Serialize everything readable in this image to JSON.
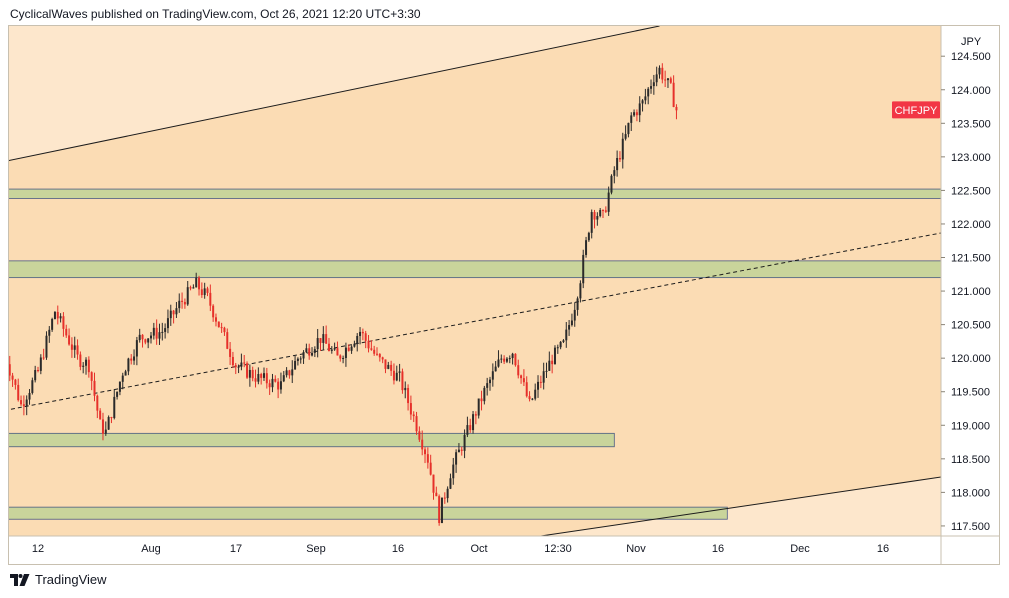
{
  "header": {
    "author": "CyclicalWaves",
    "text": "published on TradingView.com, Oct 26, 2021 12:20 UTC+3:30"
  },
  "footer": {
    "brand": "TradingView"
  },
  "symbol": {
    "label": "CHFJPY",
    "color": "#f23645"
  },
  "colors": {
    "background": "#fbdcb4",
    "channel_outside": "#fde7cc",
    "zone_fill": "#c9d49b",
    "zone_border": "#4a5a82",
    "up_candle": "#2a2a2a",
    "down_candle": "#e6302a"
  },
  "chart_data": {
    "type": "candlestick",
    "symbol": "CHFJPY",
    "currency": "JPY",
    "x_labels": [
      "12",
      "Aug",
      "17",
      "Sep",
      "16",
      "Oct",
      "12:30",
      "Nov",
      "16",
      "Dec",
      "16"
    ],
    "y_ticks": [
      "124.500",
      "124.000",
      "123.500",
      "123.000",
      "122.500",
      "122.000",
      "121.500",
      "121.000",
      "120.500",
      "120.000",
      "119.500",
      "119.000",
      "118.500",
      "118.000",
      "117.500"
    ],
    "ylim": [
      117.35,
      124.95
    ],
    "last_price": 123.7,
    "zones": [
      {
        "name": "zone-122.5",
        "low": 122.38,
        "high": 122.52,
        "from": "2021-07-06",
        "to": "2021-12-31"
      },
      {
        "name": "zone-121.3",
        "low": 121.2,
        "high": 121.45,
        "from": "2021-07-06",
        "to": "2021-12-31"
      },
      {
        "name": "zone-118.8",
        "low": 118.68,
        "high": 118.88,
        "from": "2021-07-06",
        "to": "2021-10-22"
      },
      {
        "name": "zone-117.8",
        "low": 117.6,
        "high": 117.78,
        "from": "2021-07-06",
        "to": "2021-11-11"
      }
    ],
    "trendlines": [
      {
        "name": "channel-upper",
        "style": "solid",
        "from": {
          "date": "2021-07-06",
          "price": 122.93
        },
        "to": {
          "date": "2021-10-30",
          "price": 124.95
        }
      },
      {
        "name": "channel-lower",
        "style": "solid",
        "from": {
          "date": "2021-10-09",
          "price": 117.35
        },
        "to": {
          "date": "2021-12-31",
          "price": 118.38
        }
      },
      {
        "name": "midline",
        "style": "dashed",
        "from": {
          "date": "2021-07-06",
          "price": 119.22
        },
        "to": {
          "date": "2021-12-31",
          "price": 122.06
        }
      }
    ],
    "path": [
      [
        "2021-07-06",
        120.1
      ],
      [
        "2021-07-09",
        119.3
      ],
      [
        "2021-07-12",
        119.8
      ],
      [
        "2021-07-15",
        120.7
      ],
      [
        "2021-07-19",
        120.0
      ],
      [
        "2021-07-21",
        119.9
      ],
      [
        "2021-07-23",
        119.0
      ],
      [
        "2021-07-24",
        118.9
      ],
      [
        "2021-07-27",
        119.8
      ],
      [
        "2021-07-30",
        120.3
      ],
      [
        "2021-08-03",
        120.4
      ],
      [
        "2021-08-06",
        120.8
      ],
      [
        "2021-08-09",
        121.1
      ],
      [
        "2021-08-11",
        120.9
      ],
      [
        "2021-08-13",
        120.5
      ],
      [
        "2021-08-16",
        119.9
      ],
      [
        "2021-08-20",
        119.7
      ],
      [
        "2021-08-24",
        119.6
      ],
      [
        "2021-08-27",
        120.0
      ],
      [
        "2021-08-31",
        120.3
      ],
      [
        "2021-09-03",
        120.0
      ],
      [
        "2021-09-07",
        120.4
      ],
      [
        "2021-09-10",
        120.0
      ],
      [
        "2021-09-14",
        119.7
      ],
      [
        "2021-09-17",
        119.0
      ],
      [
        "2021-09-19",
        118.5
      ],
      [
        "2021-09-21",
        117.65
      ],
      [
        "2021-09-23",
        118.3
      ],
      [
        "2021-09-26",
        118.9
      ],
      [
        "2021-09-29",
        119.5
      ],
      [
        "2021-10-02",
        120.0
      ],
      [
        "2021-10-04",
        120.1
      ],
      [
        "2021-10-07",
        119.3
      ],
      [
        "2021-10-08",
        119.5
      ],
      [
        "2021-10-11",
        120.0
      ],
      [
        "2021-10-13",
        120.2
      ],
      [
        "2021-10-15",
        120.8
      ],
      [
        "2021-10-16",
        121.2
      ],
      [
        "2021-10-18",
        122.2
      ],
      [
        "2021-10-20",
        122.1
      ],
      [
        "2021-10-22",
        122.8
      ],
      [
        "2021-10-24",
        123.3
      ],
      [
        "2021-10-25",
        123.6
      ],
      [
        "2021-10-27",
        123.8
      ],
      [
        "2021-10-29",
        124.2
      ],
      [
        "2021-10-30",
        124.3
      ],
      [
        "2021-11-01",
        124.0
      ],
      [
        "2021-11-02",
        123.7
      ]
    ]
  }
}
